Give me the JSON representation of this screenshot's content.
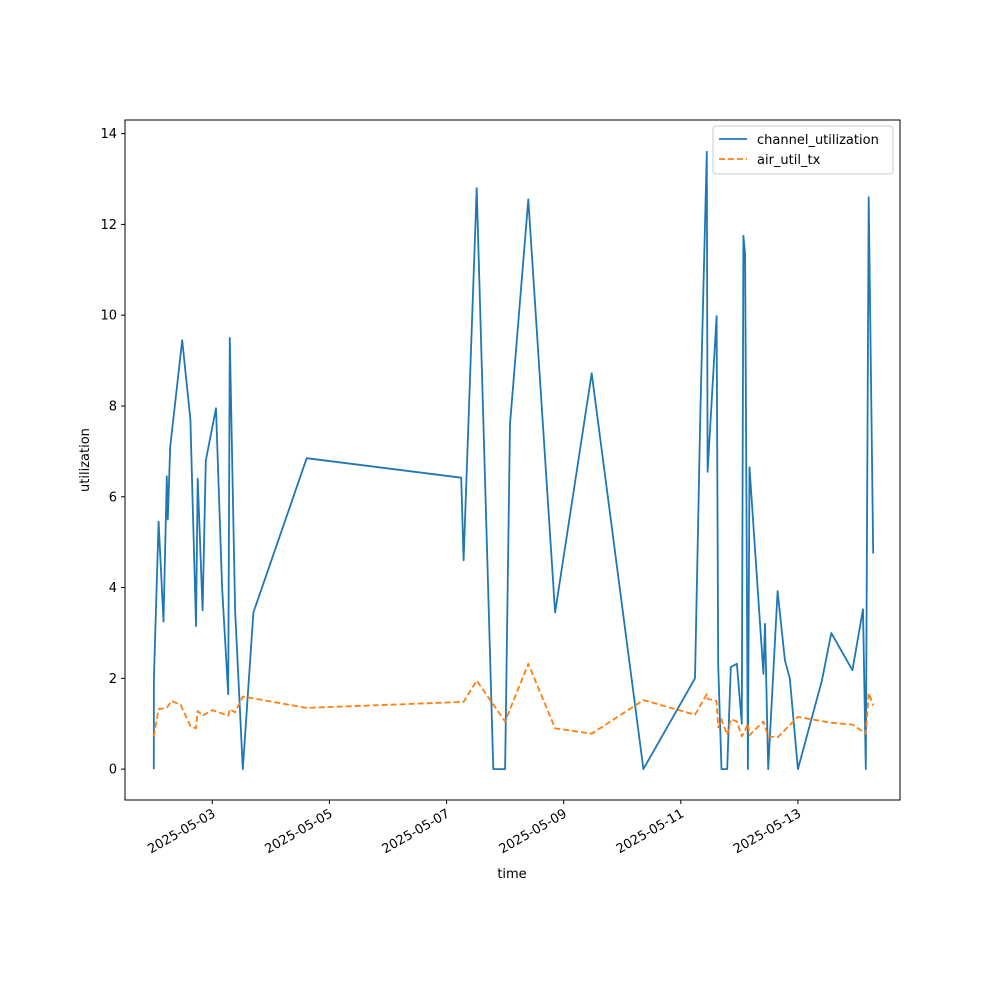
{
  "chart_data": {
    "type": "line",
    "title": "",
    "xlabel": "time",
    "ylabel": "utilization",
    "xlim": [
      "2025-05-01T12:13",
      "2025-05-14T17:50"
    ],
    "ylim": [
      -0.68,
      14.3
    ],
    "x_ticks": [
      "2025-05-03",
      "2025-05-05",
      "2025-05-07",
      "2025-05-09",
      "2025-05-11",
      "2025-05-13"
    ],
    "y_ticks": [
      0,
      2,
      4,
      6,
      8,
      10,
      12,
      14
    ],
    "grid": false,
    "legend": "upper right",
    "series": [
      {
        "name": "channel_utilization",
        "color": "#1f77b4",
        "dash": "solid",
        "points": [
          [
            "2025-05-02T00:00",
            0.0
          ],
          [
            "2025-05-02T00:03",
            2.0
          ],
          [
            "2025-05-02T02:00",
            5.45
          ],
          [
            "2025-05-02T04:00",
            3.25
          ],
          [
            "2025-05-02T05:20",
            6.45
          ],
          [
            "2025-05-02T05:45",
            5.5
          ],
          [
            "2025-05-02T06:45",
            7.1
          ],
          [
            "2025-05-02T11:40",
            9.45
          ],
          [
            "2025-05-02T15:00",
            7.7
          ],
          [
            "2025-05-02T17:20",
            3.15
          ],
          [
            "2025-05-02T18:00",
            6.4
          ],
          [
            "2025-05-02T20:00",
            3.5
          ],
          [
            "2025-05-02T21:20",
            6.8
          ],
          [
            "2025-05-03T01:30",
            7.95
          ],
          [
            "2025-05-03T04:00",
            4.0
          ],
          [
            "2025-05-03T06:30",
            1.65
          ],
          [
            "2025-05-03T07:10",
            9.5
          ],
          [
            "2025-05-03T09:20",
            3.5
          ],
          [
            "2025-05-03T12:30",
            0.0
          ],
          [
            "2025-05-03T16:50",
            3.45
          ],
          [
            "2025-05-04T14:40",
            6.85
          ],
          [
            "2025-05-07T06:00",
            6.42
          ],
          [
            "2025-05-07T07:00",
            4.6
          ],
          [
            "2025-05-07T12:20",
            12.8
          ],
          [
            "2025-05-07T19:10",
            0.0
          ],
          [
            "2025-05-08T00:00",
            0.0
          ],
          [
            "2025-05-08T02:00",
            7.6
          ],
          [
            "2025-05-08T09:30",
            12.55
          ],
          [
            "2025-05-08T20:30",
            3.45
          ],
          [
            "2025-05-09T11:30",
            8.72
          ],
          [
            "2025-05-10T08:40",
            0.0
          ],
          [
            "2025-05-11T05:50",
            2.0
          ],
          [
            "2025-05-11T08:00",
            7.8
          ],
          [
            "2025-05-11T10:40",
            13.6
          ],
          [
            "2025-05-11T11:00",
            6.55
          ],
          [
            "2025-05-11T14:40",
            9.98
          ],
          [
            "2025-05-11T15:20",
            2.3
          ],
          [
            "2025-05-11T16:40",
            0.0
          ],
          [
            "2025-05-11T19:00",
            0.0
          ],
          [
            "2025-05-11T20:30",
            2.25
          ],
          [
            "2025-05-11T23:00",
            2.32
          ],
          [
            "2025-05-12T01:00",
            1.0
          ],
          [
            "2025-05-12T01:40",
            11.75
          ],
          [
            "2025-05-12T02:20",
            11.35
          ],
          [
            "2025-05-12T03:30",
            0.0
          ],
          [
            "2025-05-12T04:10",
            6.65
          ],
          [
            "2025-05-12T09:50",
            2.1
          ],
          [
            "2025-05-12T10:30",
            3.2
          ],
          [
            "2025-05-12T11:50",
            0.0
          ],
          [
            "2025-05-12T15:40",
            3.92
          ],
          [
            "2025-05-12T18:40",
            2.4
          ],
          [
            "2025-05-12T20:40",
            2.0
          ],
          [
            "2025-05-13T00:00",
            0.0
          ],
          [
            "2025-05-13T09:50",
            1.95
          ],
          [
            "2025-05-13T13:40",
            3.0
          ],
          [
            "2025-05-13T22:20",
            2.18
          ],
          [
            "2025-05-14T02:40",
            3.52
          ],
          [
            "2025-05-14T03:50",
            0.0
          ],
          [
            "2025-05-14T05:00",
            12.6
          ],
          [
            "2025-05-14T06:50",
            4.75
          ]
        ]
      },
      {
        "name": "air_util_tx",
        "color": "#ff7f0e",
        "dash": "dashed",
        "points": [
          [
            "2025-05-02T00:00",
            0.72
          ],
          [
            "2025-05-02T02:00",
            1.32
          ],
          [
            "2025-05-02T05:20",
            1.35
          ],
          [
            "2025-05-02T07:20",
            1.5
          ],
          [
            "2025-05-02T11:00",
            1.42
          ],
          [
            "2025-05-02T15:00",
            0.95
          ],
          [
            "2025-05-02T17:20",
            0.9
          ],
          [
            "2025-05-02T18:00",
            1.28
          ],
          [
            "2025-05-02T20:00",
            1.18
          ],
          [
            "2025-05-03T00:00",
            1.3
          ],
          [
            "2025-05-03T06:30",
            1.18
          ],
          [
            "2025-05-03T07:10",
            1.32
          ],
          [
            "2025-05-03T09:20",
            1.25
          ],
          [
            "2025-05-03T12:30",
            1.6
          ],
          [
            "2025-05-04T14:40",
            1.35
          ],
          [
            "2025-05-07T07:00",
            1.48
          ],
          [
            "2025-05-07T12:20",
            1.95
          ],
          [
            "2025-05-08T00:00",
            1.05
          ],
          [
            "2025-05-08T09:30",
            2.32
          ],
          [
            "2025-05-08T20:30",
            0.9
          ],
          [
            "2025-05-09T11:30",
            0.78
          ],
          [
            "2025-05-10T08:40",
            1.52
          ],
          [
            "2025-05-11T05:50",
            1.2
          ],
          [
            "2025-05-11T10:40",
            1.65
          ],
          [
            "2025-05-11T11:00",
            1.55
          ],
          [
            "2025-05-11T14:40",
            1.5
          ],
          [
            "2025-05-11T15:20",
            0.92
          ],
          [
            "2025-05-11T16:40",
            1.1
          ],
          [
            "2025-05-11T19:00",
            0.75
          ],
          [
            "2025-05-11T20:30",
            1.1
          ],
          [
            "2025-05-11T23:00",
            1.05
          ],
          [
            "2025-05-12T01:00",
            0.72
          ],
          [
            "2025-05-12T02:20",
            0.85
          ],
          [
            "2025-05-12T03:30",
            1.0
          ],
          [
            "2025-05-12T04:10",
            0.75
          ],
          [
            "2025-05-12T05:30",
            0.82
          ],
          [
            "2025-05-12T09:50",
            1.05
          ],
          [
            "2025-05-12T11:50",
            0.72
          ],
          [
            "2025-05-12T15:40",
            0.7
          ],
          [
            "2025-05-13T00:00",
            1.15
          ],
          [
            "2025-05-13T13:40",
            1.02
          ],
          [
            "2025-05-13T22:20",
            0.98
          ],
          [
            "2025-05-14T03:50",
            0.78
          ],
          [
            "2025-05-14T05:00",
            1.68
          ],
          [
            "2025-05-14T06:50",
            1.4
          ]
        ]
      }
    ]
  }
}
